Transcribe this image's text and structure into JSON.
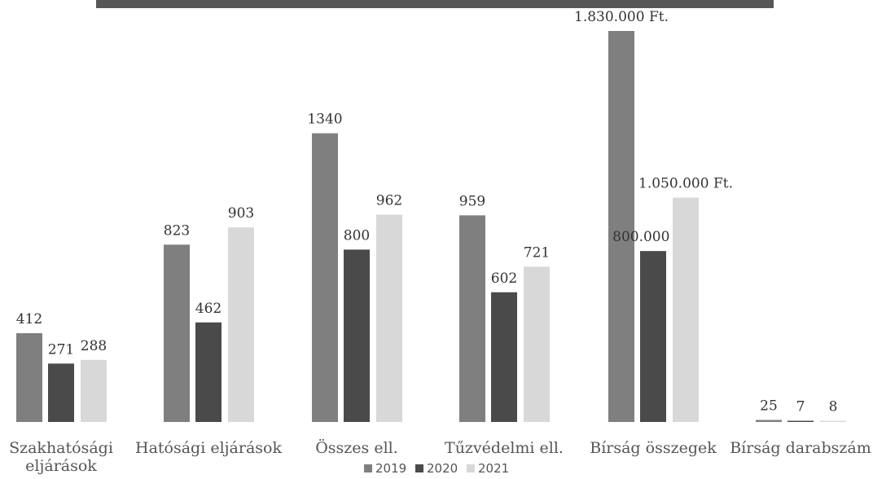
{
  "chart_data": {
    "type": "bar",
    "title": "",
    "xlabel": "",
    "ylabel": "",
    "categories": [
      [
        "Szakhatósági",
        "eljárások"
      ],
      [
        "Hatósági eljárások"
      ],
      [
        "Összes ell."
      ],
      [
        "Tűzvédelmi ell."
      ],
      [
        "Bírság összegek"
      ],
      [
        "Bírság darabszám"
      ]
    ],
    "series": [
      {
        "name": "2019",
        "color": "#7f7f7f",
        "values": [
          412,
          823,
          1340,
          959,
          1830000,
          25
        ],
        "labels": [
          "412",
          "823",
          "1340",
          "959",
          "1.830.000 Ft.",
          "25"
        ]
      },
      {
        "name": "2020",
        "color": "#4a4a4a",
        "values": [
          271,
          462,
          800,
          602,
          800000,
          7
        ],
        "labels": [
          "271",
          "462",
          "800",
          "602",
          "800.000 Ft.",
          "7"
        ]
      },
      {
        "name": "2021",
        "color": "#d8d8d8",
        "values": [
          288,
          903,
          962,
          721,
          1050000,
          8
        ],
        "labels": [
          "288",
          "903",
          "962",
          "721",
          "1.050.000 Ft.",
          "8"
        ]
      }
    ],
    "legend": {
      "position": "bottom"
    },
    "grid": false
  }
}
